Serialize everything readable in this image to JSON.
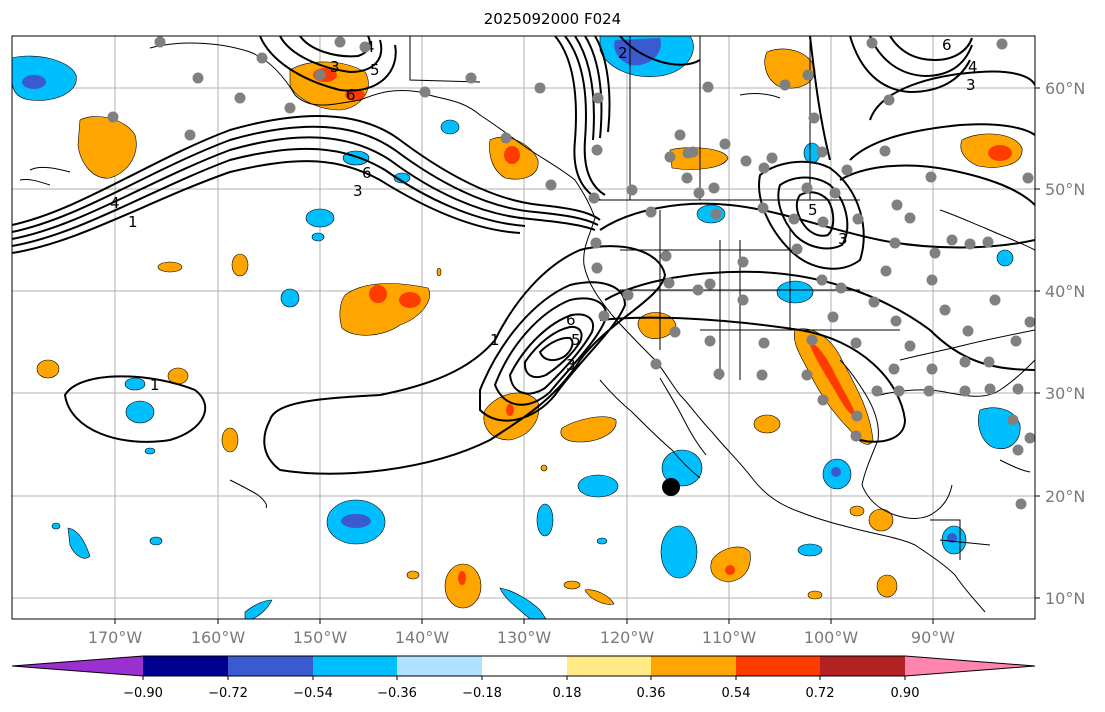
{
  "title": "2025092000 F024",
  "axes": {
    "lon_labels": [
      "170°W",
      "160°W",
      "150°W",
      "140°W",
      "130°W",
      "120°W",
      "110°W",
      "100°W",
      "90°W"
    ],
    "lat_labels": [
      "60°N",
      "50°N",
      "40°N",
      "30°N",
      "20°N",
      "10°N"
    ]
  },
  "colorbar": {
    "ticks": [
      "−0.90",
      "−0.72",
      "−0.54",
      "−0.36",
      "−0.18",
      "0.18",
      "0.36",
      "0.54",
      "0.72",
      "0.90"
    ],
    "colors": [
      "#9b30d0",
      "#000090",
      "#3a5bd0",
      "#00bfff",
      "#aee2ff",
      "#ffffff",
      "#ffea85",
      "#ffa500",
      "#ff3c00",
      "#b22222",
      "#ff85b0"
    ]
  },
  "contour_labels": [
    "1",
    "1",
    "1",
    "3",
    "3",
    "3",
    "3",
    "4",
    "4",
    "4",
    "5",
    "5",
    "5",
    "6",
    "6",
    "6",
    "6",
    "2",
    "3"
  ],
  "colors": {
    "orange": "#ffa500",
    "red": "#ff3c00",
    "cyan": "#00bfff",
    "blue": "#3a5bd0",
    "station": "#808080",
    "grid": "#b0b0b0"
  }
}
